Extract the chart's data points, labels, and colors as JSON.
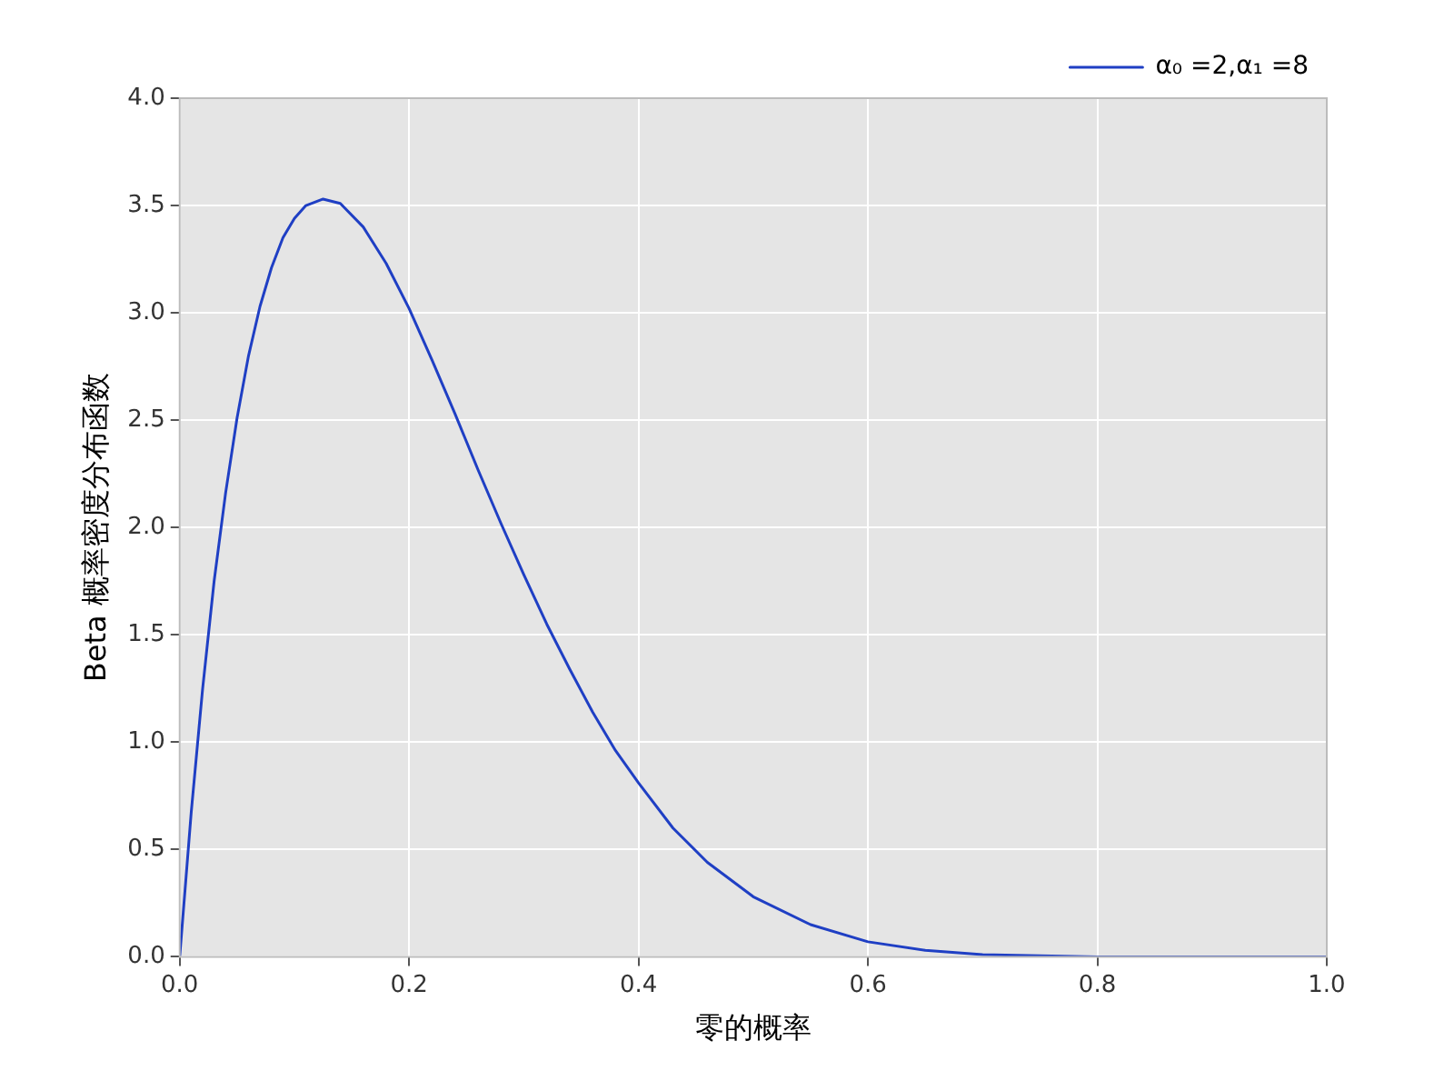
{
  "chart_data": {
    "type": "line",
    "xlabel": "零的概率",
    "ylabel": "Beta 概率密度分布函数",
    "x": [
      0,
      0.01,
      0.02,
      0.03,
      0.04,
      0.05,
      0.06,
      0.07,
      0.08,
      0.09,
      0.1,
      0.11,
      0.125,
      0.14,
      0.16,
      0.18,
      0.2,
      0.22,
      0.24,
      0.26,
      0.28,
      0.3,
      0.32,
      0.34,
      0.36,
      0.38,
      0.4,
      0.43,
      0.46,
      0.5,
      0.55,
      0.6,
      0.65,
      0.7,
      0.8,
      0.9,
      1.0
    ],
    "series": [
      {
        "name": "α₀ =2,α₁ =8",
        "color": "#1f3fc4",
        "values": [
          0,
          0.67,
          1.25,
          1.75,
          2.16,
          2.51,
          2.8,
          3.03,
          3.21,
          3.35,
          3.44,
          3.5,
          3.53,
          3.51,
          3.4,
          3.23,
          3.02,
          2.78,
          2.53,
          2.27,
          2.02,
          1.78,
          1.55,
          1.34,
          1.14,
          0.96,
          0.81,
          0.6,
          0.44,
          0.28,
          0.15,
          0.07,
          0.03,
          0.01,
          0,
          0,
          0
        ]
      }
    ],
    "xlim": [
      0,
      1
    ],
    "xticks": [
      {
        "value": 0,
        "label": "0.0"
      },
      0.2,
      0.4,
      0.6,
      0.8,
      {
        "value": 1,
        "label": "1.0"
      }
    ],
    "ylim": [
      0,
      4
    ],
    "yticks": [
      {
        "value": 0,
        "label": "0.0"
      },
      0.5,
      {
        "value": 1,
        "label": "1.0"
      },
      1.5,
      {
        "value": 2,
        "label": "2.0"
      },
      2.5,
      {
        "value": 3,
        "label": "3.0"
      },
      3.5,
      {
        "value": 4,
        "label": "4.0"
      }
    ],
    "grid": true,
    "legend": "top right",
    "line_style": "solid",
    "marker": "none"
  }
}
